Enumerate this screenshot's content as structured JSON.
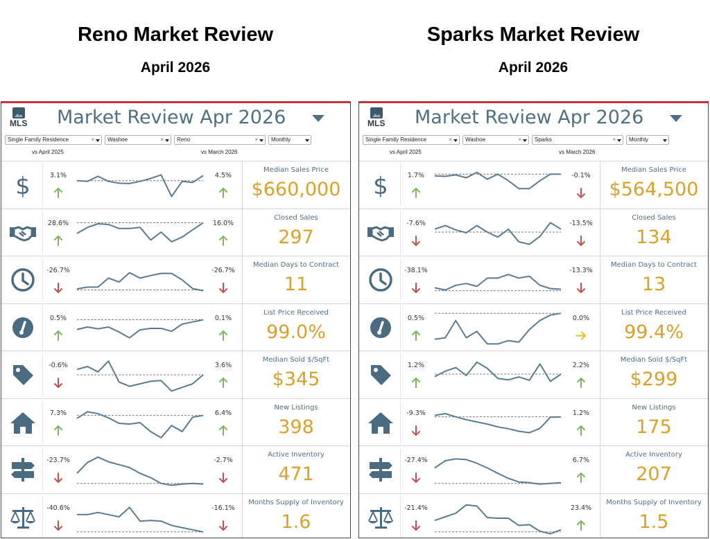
{
  "colors": {
    "up": "#7fb55f",
    "down": "#c0504d",
    "flat": "#e2c12e",
    "line": "#5a7a8f",
    "accent": "#d9a12a",
    "title": "#4f6f82",
    "icon": "#4a6b80"
  },
  "panels": [
    {
      "key": "reno",
      "page_title": "Reno Market Review",
      "page_subtitle": "April 2026",
      "header_title": "Market Review  Apr 2026",
      "logo_text": "MLS",
      "filters": [
        "Single Family Residence",
        "Washoe",
        "Reno",
        "Monthly"
      ],
      "filter_clear": "× ",
      "compare_a": "vs April 2025",
      "compare_b": "vs March 2026",
      "rows": [
        {
          "icon": "dollar-icon",
          "label": "Median Sales Price",
          "value": "$660,000",
          "pct_a": "3.1%",
          "dir_a": "up",
          "pct_b": "4.5%",
          "dir_b": "up",
          "spark": [
            62,
            60,
            74,
            60,
            55,
            54,
            60,
            68,
            78,
            18,
            60,
            57,
            76
          ],
          "ref": 62
        },
        {
          "icon": "handshake-icon",
          "label": "Closed Sales",
          "value": "297",
          "pct_a": "28.6%",
          "dir_a": "up",
          "pct_b": "16.0%",
          "dir_b": "up",
          "spark": [
            48,
            65,
            75,
            73,
            62,
            62,
            65,
            30,
            52,
            25,
            38,
            58,
            78
          ],
          "ref": 78
        },
        {
          "icon": "clock-icon",
          "label": "Median Days to Contract",
          "value": "11",
          "pct_a": "-26.7%",
          "dir_a": "down",
          "pct_b": "-26.7%",
          "dir_b": "down",
          "spark": [
            25,
            30,
            30,
            55,
            44,
            70,
            55,
            62,
            68,
            68,
            50,
            26,
            20
          ],
          "ref": 22
        },
        {
          "icon": "gauge-icon",
          "label": "List Price Received",
          "value": "99.0%",
          "pct_a": "0.5%",
          "dir_a": "up",
          "pct_b": "0.1%",
          "dir_b": "up",
          "spark": [
            45,
            52,
            47,
            52,
            38,
            22,
            44,
            48,
            48,
            40,
            60,
            66,
            72
          ],
          "ref": 72
        },
        {
          "icon": "tag-icon",
          "label": "Median Sold $/SqFt",
          "value": "$345",
          "pct_a": "-0.6%",
          "dir_a": "down",
          "pct_b": "3.6%",
          "dir_b": "up",
          "spark": [
            65,
            73,
            58,
            88,
            30,
            18,
            25,
            32,
            34,
            5,
            15,
            25,
            50
          ],
          "ref": 50
        },
        {
          "icon": "house-icon",
          "label": "New Listings",
          "value": "398",
          "pct_a": "7.3%",
          "dir_a": "up",
          "pct_b": "6.4%",
          "dir_b": "up",
          "spark": [
            62,
            80,
            75,
            63,
            48,
            46,
            50,
            25,
            8,
            42,
            25,
            65,
            70
          ],
          "ref": 70
        },
        {
          "icon": "signpost-icon",
          "label": "Active Inventory",
          "value": "471",
          "pct_a": "-23.7%",
          "dir_a": "down",
          "pct_b": "-2.7%",
          "dir_b": "down",
          "spark": [
            40,
            70,
            85,
            72,
            64,
            56,
            40,
            28,
            12,
            7,
            10,
            12,
            10
          ],
          "ref": 12
        },
        {
          "icon": "scale-icon",
          "label": "Months Supply of Inventory",
          "value": "1.6",
          "pct_a": "-40.6%",
          "dir_a": "down",
          "pct_b": "-16.1%",
          "dir_b": "down",
          "spark": [
            58,
            58,
            64,
            58,
            52,
            78,
            40,
            42,
            40,
            28,
            22,
            16,
            10
          ],
          "ref": 10
        }
      ]
    },
    {
      "key": "sparks",
      "page_title": "Sparks Market Review",
      "page_subtitle": "April 2026",
      "header_title": "Market Review  Apr 2026",
      "logo_text": "MLS",
      "filters": [
        "Single Family Residence",
        "Washoe",
        "Sparks",
        "Monthly"
      ],
      "filter_clear": "× ",
      "compare_a": "vs April 2025",
      "compare_b": "vs March 2026",
      "rows": [
        {
          "icon": "dollar-icon",
          "label": "Median Sales Price",
          "value": "$564,500",
          "pct_a": "1.7%",
          "dir_a": "up",
          "pct_b": "-0.1%",
          "dir_b": "down",
          "spark": [
            75,
            74,
            78,
            70,
            85,
            66,
            80,
            62,
            40,
            40,
            62,
            80,
            80
          ],
          "ref": 80
        },
        {
          "icon": "handshake-icon",
          "label": "Closed Sales",
          "value": "134",
          "pct_a": "-7.6%",
          "dir_a": "down",
          "pct_b": "-13.5%",
          "dir_b": "down",
          "spark": [
            60,
            70,
            58,
            50,
            70,
            52,
            38,
            60,
            25,
            18,
            40,
            78,
            60
          ],
          "ref": 52
        },
        {
          "icon": "clock-icon",
          "label": "Median Days to Contract",
          "value": "13",
          "pct_a": "-38.1%",
          "dir_a": "down",
          "pct_b": "-13.3%",
          "dir_b": "down",
          "spark": [
            28,
            22,
            35,
            40,
            32,
            55,
            55,
            65,
            55,
            60,
            35,
            26,
            24
          ],
          "ref": 20
        },
        {
          "icon": "gauge-icon",
          "label": "List Price Received",
          "value": "99.4%",
          "pct_a": "0.5%",
          "dir_a": "up",
          "pct_b": "0.0%",
          "dir_b": "flat",
          "spark": [
            18,
            22,
            70,
            22,
            40,
            5,
            5,
            14,
            10,
            45,
            70,
            85,
            90
          ],
          "ref": 90
        },
        {
          "icon": "tag-icon",
          "label": "Median Sold $/SqFt",
          "value": "$299",
          "pct_a": "1.2%",
          "dir_a": "up",
          "pct_b": "2.2%",
          "dir_b": "up",
          "spark": [
            45,
            60,
            70,
            48,
            85,
            68,
            40,
            36,
            44,
            35,
            80,
            32,
            52
          ],
          "ref": 52
        },
        {
          "icon": "house-icon",
          "label": "New Listings",
          "value": "175",
          "pct_a": "-9.3%",
          "dir_a": "down",
          "pct_b": "1.2%",
          "dir_b": "up",
          "spark": [
            70,
            75,
            66,
            58,
            52,
            46,
            38,
            33,
            26,
            22,
            34,
            65,
            66
          ],
          "ref": 66
        },
        {
          "icon": "signpost-icon",
          "label": "Active Inventory",
          "value": "207",
          "pct_a": "-27.4%",
          "dir_a": "down",
          "pct_b": "6.7%",
          "dir_b": "up",
          "spark": [
            55,
            75,
            80,
            78,
            68,
            55,
            40,
            26,
            16,
            14,
            10,
            12,
            14
          ],
          "ref": 12
        },
        {
          "icon": "scale-icon",
          "label": "Months Supply of Inventory",
          "value": "1.5",
          "pct_a": "-21.4%",
          "dir_a": "down",
          "pct_b": "23.4%",
          "dir_b": "up",
          "spark": [
            42,
            52,
            62,
            85,
            82,
            50,
            48,
            48,
            28,
            30,
            12,
            5,
            16
          ],
          "ref": 10
        }
      ]
    }
  ]
}
